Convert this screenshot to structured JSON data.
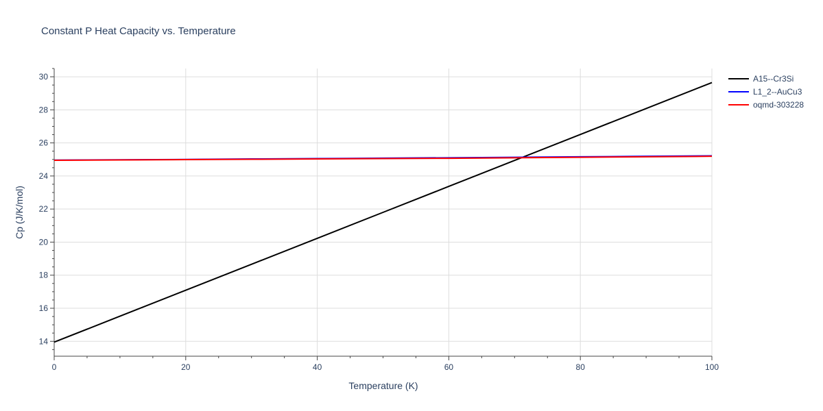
{
  "chart_data": {
    "type": "line",
    "title": "Constant P Heat Capacity vs. Temperature",
    "xlabel": "Temperature (K)",
    "ylabel": "Cp (J/K/mol)",
    "xlim": [
      0,
      100
    ],
    "ylim": [
      13.1,
      30.5
    ],
    "xticks": [
      0,
      20,
      40,
      60,
      80,
      100
    ],
    "yticks": [
      14,
      16,
      18,
      20,
      22,
      24,
      26,
      28,
      30
    ],
    "grid": true,
    "legend_position": "top-right",
    "series": [
      {
        "name": "A15--Cr3Si",
        "color": "#000000",
        "x": [
          0,
          10,
          20,
          30,
          40,
          50,
          60,
          70,
          80,
          90,
          100
        ],
        "y": [
          13.95,
          15.52,
          17.09,
          18.66,
          20.23,
          21.8,
          23.37,
          24.94,
          26.51,
          28.08,
          29.65
        ]
      },
      {
        "name": "L1_2--AuCu3",
        "color": "#0000ff",
        "x": [
          0,
          10,
          20,
          30,
          40,
          50,
          60,
          70,
          80,
          90,
          100
        ],
        "y": [
          24.96,
          24.98,
          25.0,
          25.03,
          25.05,
          25.08,
          25.1,
          25.13,
          25.16,
          25.19,
          25.22
        ]
      },
      {
        "name": "oqmd-303228",
        "color": "#ff0000",
        "x": [
          0,
          10,
          20,
          30,
          40,
          50,
          60,
          70,
          80,
          90,
          100
        ],
        "y": [
          24.95,
          24.97,
          24.99,
          25.01,
          25.03,
          25.05,
          25.07,
          25.1,
          25.13,
          25.16,
          25.19
        ]
      }
    ]
  }
}
